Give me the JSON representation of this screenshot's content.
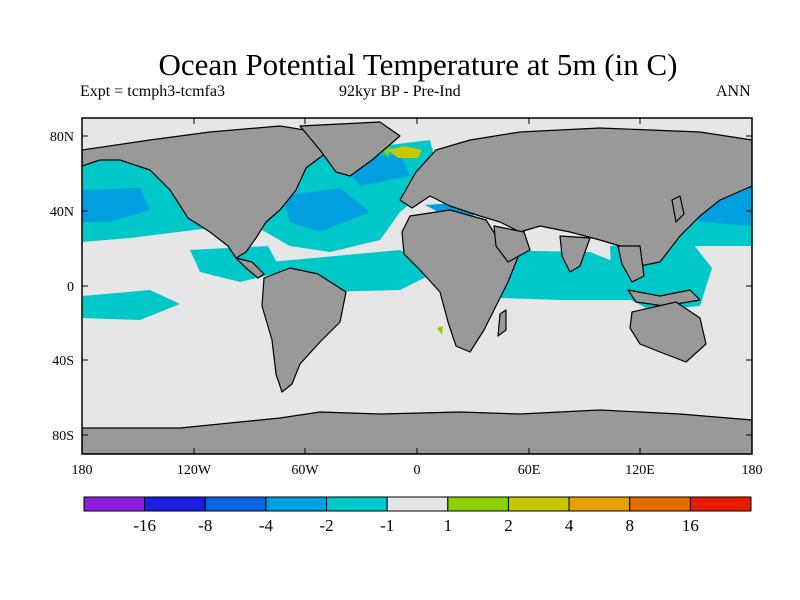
{
  "figure": {
    "title": "Ocean Potential Temperature at 5m (in C)",
    "experiment": "Expt = tcmph3-tcmfa3",
    "period": "92kyr BP - Pre-Ind",
    "season": "ANN"
  },
  "map": {
    "projection": "cylindrical-equidistant",
    "lon_range": [
      -180,
      180
    ],
    "lat_range": [
      -90,
      90
    ],
    "x_tick_labels": [
      "180",
      "120W",
      "60W",
      "0",
      "60E",
      "120E",
      "180"
    ],
    "y_tick_labels": [
      "80N",
      "40N",
      "0",
      "40S",
      "80S"
    ],
    "land_color": "#999999",
    "no_change_color": "#e6e6e6",
    "coastline_color": "#000000",
    "field_regions": [
      {
        "region": "North Pacific mid-latitudes",
        "color": "#00c8c8"
      },
      {
        "region": "Kuroshio extension",
        "color": "#00a0e0"
      },
      {
        "region": "Gulf Stream / NW Atlantic",
        "color": "#00a0e0"
      },
      {
        "region": "North Atlantic interior",
        "color": "#00c8c8"
      },
      {
        "region": "Greenland Sea",
        "color": "#00a0e0"
      },
      {
        "region": "Barents Sea warm patch",
        "color": "#c8c800"
      },
      {
        "region": "Mediterranean",
        "color": "#00a0e0"
      },
      {
        "region": "Tropical Atlantic / Indian / W Pacific",
        "color": "#00c8c8"
      }
    ]
  },
  "colorbar": {
    "colors": [
      "#8c1ee0",
      "#1e1ee0",
      "#0a64e0",
      "#00a0e0",
      "#00c8c8",
      "#e6e6e6",
      "#8cd200",
      "#c8c800",
      "#e6a000",
      "#e66e00",
      "#e61e00"
    ],
    "labels": [
      "-16",
      "-8",
      "-4",
      "-2",
      "-1",
      "1",
      "2",
      "4",
      "8",
      "16"
    ]
  }
}
